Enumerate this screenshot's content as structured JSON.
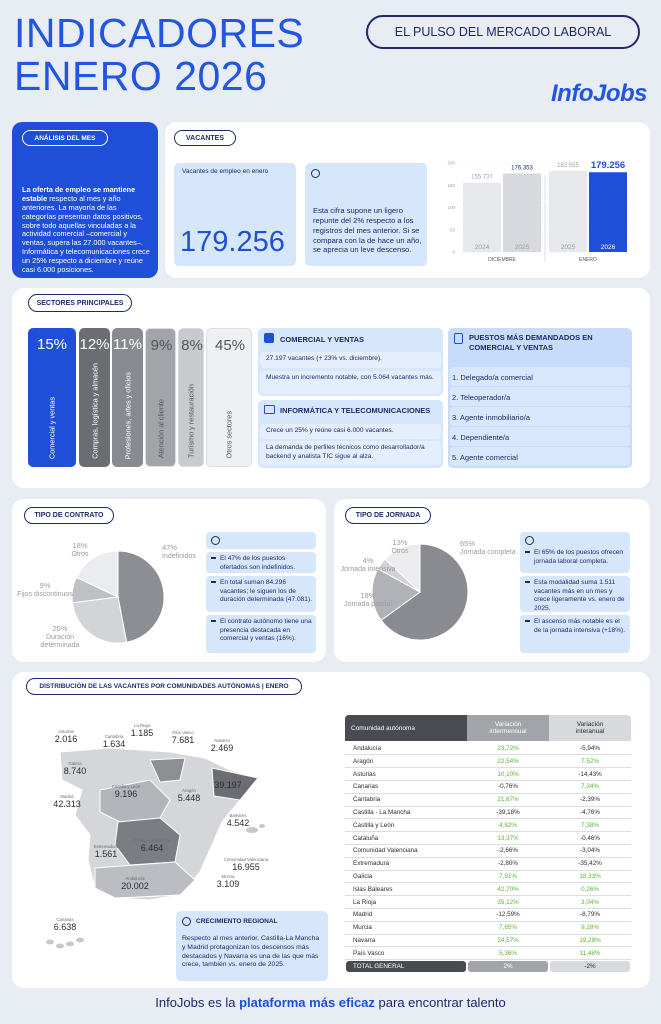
{
  "header": {
    "title": [
      "INDICADORES",
      "ENERO 2026"
    ],
    "tagline": "EL PULSO DEL MERCADO LABORAL",
    "logo": "InfoJobs"
  },
  "analysis": {
    "label": "ANÁLISIS DEL MES",
    "lead": "La oferta de empleo se mantiene estable",
    "text": "respecto al mes y año anteriores. La mayoría de las categorías presentan datos positivos, sobre todo aquellas vinculadas a la actividad comercial –comercial y ventas, supera las 27.000 vacantes–. Informática y telecomunicaciones crece un 25% respecto a diciembre y reúne casi 6.000 posiciones."
  },
  "vacancies": {
    "label": "VACANTES",
    "kpi_label": "Vacantes de empleo en enero",
    "kpi_value": "179.256",
    "info": "Esta cifra supone un ligero repunte del 2% respecto a los registros del mes anterior. Si se compara con la de hace un año, se aprecia un leve descenso.",
    "chart": {
      "type": "bar",
      "ylim": [
        0,
        200000
      ],
      "yticks": [
        0,
        {
          "value": 50000,
          "label": "50"
        },
        {
          "value": 100000,
          "label": "100"
        },
        {
          "value": 150000,
          "label": "150"
        },
        {
          "value": 200000,
          "label": "200"
        }
      ],
      "groups": [
        {
          "name": "DICIEMBRE",
          "bars": [
            {
              "year": "2024",
              "value": 155737,
              "value_label": "155.737",
              "color": "#e7e8ec"
            },
            {
              "year": "2025",
              "value": 176353,
              "value_label": "176.353",
              "color": "#d8d9de"
            }
          ]
        },
        {
          "name": "ENERO",
          "bars": [
            {
              "year": "2025",
              "value": 182555,
              "value_label": "182.555",
              "color": "#e7e8ec"
            },
            {
              "year": "2026",
              "value": 179256,
              "value_label": "179.256",
              "color": "#1f4fd8"
            }
          ]
        }
      ]
    }
  },
  "sectors": {
    "label": "SECTORES PRINCIPALES",
    "items": [
      {
        "pct": "15%",
        "name": "Comercial y ventas",
        "color": "#1f4fd8"
      },
      {
        "pct": "12%",
        "name": "Compras, logística y almacén",
        "color": "#6c6d73"
      },
      {
        "pct": "11%",
        "name": "Profesiones, artes y oficios",
        "color": "#898a90"
      },
      {
        "pct": "9%",
        "name": "Atención al cliente",
        "color": "#a3a4a9"
      },
      {
        "pct": "8%",
        "name": "Turismo y restauración",
        "color": "#c9cacf"
      },
      {
        "pct": "45%",
        "name": "Otros sectores",
        "color": "#eef0f4"
      }
    ],
    "commercial": {
      "title": "COMERCIAL Y VENTAS",
      "points": [
        "27.197 vacantes (+ 23% vs. diciembre).",
        "Muestra un incremento notable, con 5.064 vacantes más."
      ]
    },
    "it": {
      "title": "INFORMÁTICA Y TELECOMUNICACIONES",
      "points": [
        "Crece un 25% y reúne casi 6.000 vacantes.",
        "La demanda de perfiles técnicos como desarrollador/a backend y analista TIC sigue al alza."
      ]
    },
    "top_jobs": {
      "title": "PUESTOS MÁS DEMANDADOS EN COMERCIAL Y VENTAS",
      "items": [
        "1. Delegado/a comercial",
        "2. Teleoperador/a",
        "3. Agente inmobiliario/a",
        "4. Dependiente/a",
        "5. Agente comercial"
      ]
    }
  },
  "contract": {
    "label": "TIPO DE CONTRATO",
    "slices": [
      {
        "name": "Indefinidos",
        "value": 47,
        "value_label": "47%",
        "color": "#8d8e93"
      },
      {
        "name": "Duración determinada",
        "value": 26,
        "value_label": "26%",
        "color": "#d3d4d8"
      },
      {
        "name": "Fijos discontinuos",
        "value": 9,
        "value_label": "9%",
        "color": "#bfc0c5"
      },
      {
        "name": "Otros",
        "value": 18,
        "value_label": "18%",
        "color": "#ebecef"
      }
    ],
    "points": [
      "El 47% de los puestos ofertados son indefinidos.",
      "En total suman 84.296 vacantes; le siguen los de duración determinada (47.081).",
      "El contrato autónomo tiene una presencia destacada en comercial y ventas (16%)."
    ]
  },
  "schedule": {
    "label": "TIPO DE JORNADA",
    "slices": [
      {
        "name": "Jornada completa",
        "value": 65,
        "value_label": "65%",
        "color": "#8a8b90"
      },
      {
        "name": "Jornada parcial",
        "value": 18,
        "value_label": "18%",
        "color": "#b1b2b7"
      },
      {
        "name": "Jornada intensiva",
        "value": 4,
        "value_label": "4%",
        "color": "#d2d3d7"
      },
      {
        "name": "Otros",
        "value": 13,
        "value_label": "13%",
        "color": "#ececef"
      }
    ],
    "points": [
      "El 65% de los puestos ofrecen jornada laboral completa.",
      "Esta modalidad suma 1.511 vacantes más en un mes y crece ligeramente vs. enero de 2025.",
      "El ascenso más notable es el de la jornada intensiva (+18%)."
    ]
  },
  "regions": {
    "title": "DISTRIBUCIÓN DE LAS VACANTES POR COMUNIDADES AUTÓNOMAS | ENERO",
    "map": [
      {
        "name": "Asturias",
        "value": "2.016"
      },
      {
        "name": "Cantabria",
        "value": "1.634"
      },
      {
        "name": "La Rioja",
        "value": "1.185"
      },
      {
        "name": "País Vasco",
        "value": "7.681"
      },
      {
        "name": "Navarra",
        "value": "2.469"
      },
      {
        "name": "Galicia",
        "value": "8.740"
      },
      {
        "name": "Castilla y León",
        "value": "9.196"
      },
      {
        "name": "Aragón",
        "value": "5.448"
      },
      {
        "name": "Cataluña",
        "value": "39.197"
      },
      {
        "name": "Madrid",
        "value": "42.313"
      },
      {
        "name": "Baleares",
        "value": "4.542"
      },
      {
        "name": "Extremadura",
        "value": "1.561"
      },
      {
        "name": "Castilla-La Mancha",
        "value": "6.464"
      },
      {
        "name": "Comunidad Valenciana",
        "value": "16.955"
      },
      {
        "name": "Andalucía",
        "value": "20.002"
      },
      {
        "name": "Murcia",
        "value": "3.109"
      },
      {
        "name": "Canarias",
        "value": "6.638"
      }
    ],
    "growth": {
      "title": "CRECIMIENTO REGIONAL",
      "text": "Respecto al mes anterior, Castilla-La Mancha y Madrid protagonizan los descensos más destacados y Navarra es una de las que más crece, también vs. enero de 2025."
    },
    "table": {
      "columns": [
        "Comunidad autónoma",
        "Variación intermensual",
        "Variación interanual"
      ],
      "rows": [
        [
          "Andalucía",
          "23,72%",
          "-5,94%"
        ],
        [
          "Aragón",
          "22,54%",
          "7,52%"
        ],
        [
          "Asturias",
          "10,10%",
          "-14,43%"
        ],
        [
          "Canarias",
          "-0,76%",
          "7,34%"
        ],
        [
          "Cantabria",
          "21,67%",
          "-2,39%"
        ],
        [
          "Castilla - La Mancha",
          "-39,18%",
          "-4,76%"
        ],
        [
          "Castilla y León",
          "4,82%",
          "7,38%"
        ],
        [
          "Cataluña",
          "13,37%",
          "-0,46%"
        ],
        [
          "Comunidad Valenciana",
          "-2,66%",
          "-3,04%"
        ],
        [
          "Extremadura",
          "-2,80%",
          "-35,42%"
        ],
        [
          "Galicia",
          "7,91%",
          "18,33%"
        ],
        [
          "Islas Baleares",
          "42,70%",
          "0,26%"
        ],
        [
          "La Rioja",
          "35,12%",
          "3,04%"
        ],
        [
          "Madrid",
          "-12,59%",
          "-8,79%"
        ],
        [
          "Murcia",
          "7,65%",
          "9,28%"
        ],
        [
          "Navarra",
          "24,57%",
          "19,28%"
        ],
        [
          "País Vasco",
          "5,36%",
          "11,48%"
        ]
      ],
      "total": [
        "TOTAL GENERAL",
        "2%",
        "-2%"
      ]
    }
  },
  "footer": {
    "parts": [
      "InfoJobs es la",
      "plataforma más eficaz",
      "para encontrar talento"
    ]
  }
}
